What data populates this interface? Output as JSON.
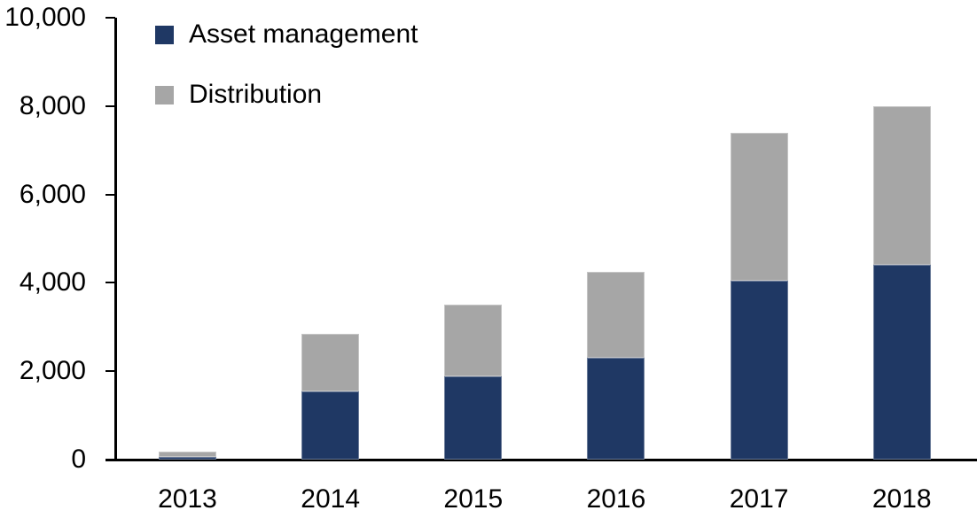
{
  "chart_data": {
    "type": "bar",
    "stacked": true,
    "title": "",
    "xlabel": "",
    "ylabel": "",
    "categories": [
      "2013",
      "2014",
      "2015",
      "2016",
      "2017",
      "2018"
    ],
    "series": [
      {
        "name": "Asset management",
        "color": "#1F3864",
        "values": [
          70,
          1550,
          1880,
          2300,
          4040,
          4400
        ]
      },
      {
        "name": "Distribution",
        "color": "#A6A6A6",
        "values": [
          120,
          1300,
          1620,
          1950,
          3350,
          3600
        ]
      }
    ],
    "totals": [
      190,
      2850,
      3500,
      4250,
      7390,
      8000
    ],
    "ylim": [
      0,
      10000
    ],
    "y_ticks": [
      0,
      2000,
      4000,
      6000,
      8000,
      10000
    ],
    "y_tick_labels": [
      "0",
      "2,000",
      "4,000",
      "6,000",
      "8,000",
      "10,000"
    ],
    "grid": false,
    "legend_position": "top-left",
    "axis_color": "#000000",
    "background_color": "#FFFFFF"
  }
}
